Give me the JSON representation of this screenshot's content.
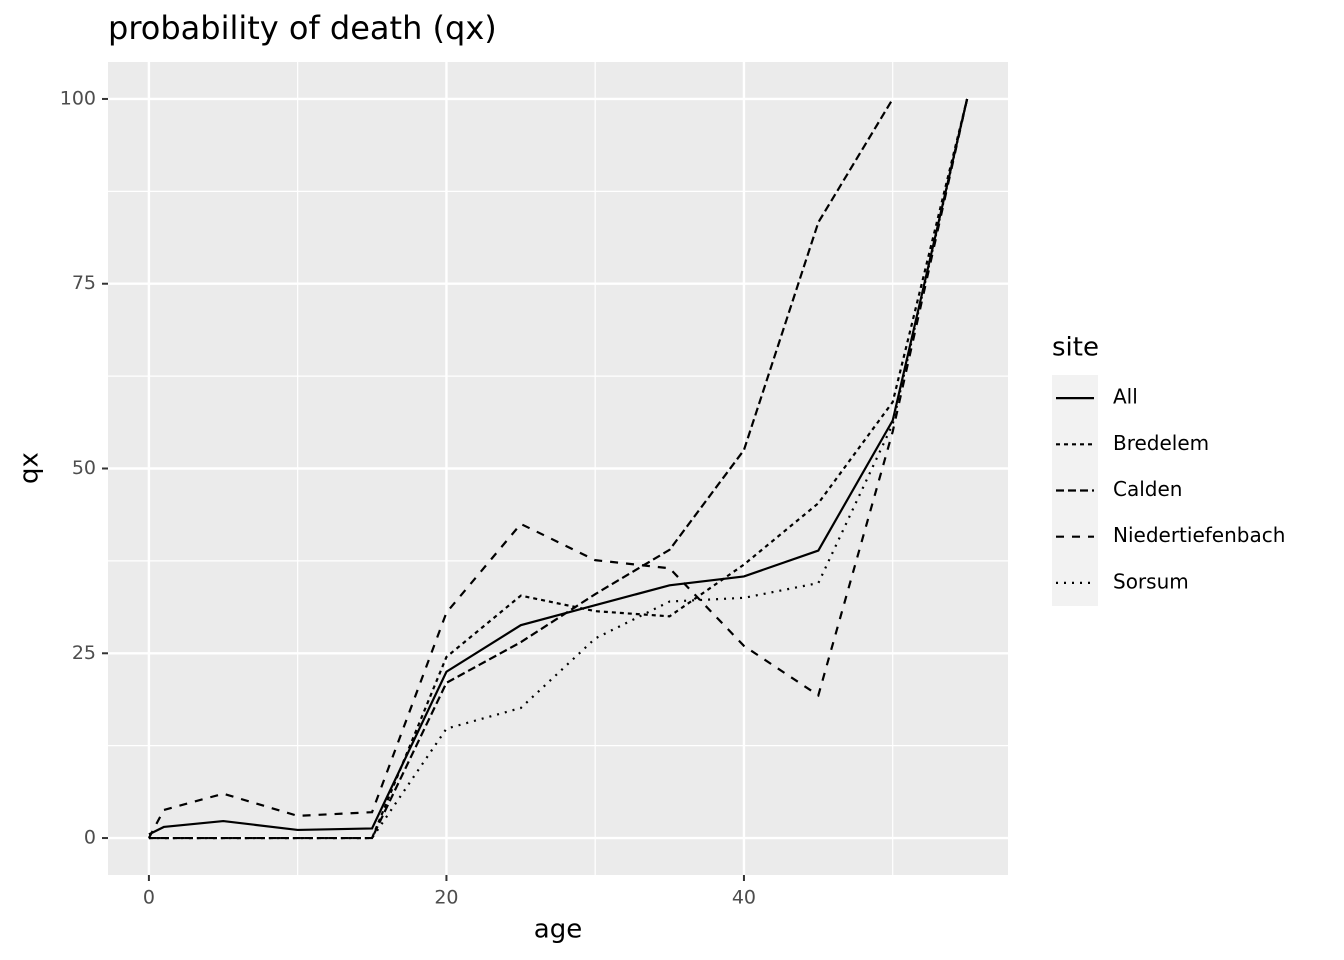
{
  "chart_data": {
    "type": "line",
    "title": "probability of death (qx)",
    "x_label": "age",
    "y_label": "qx",
    "legend_title": "site",
    "legend_position": "right",
    "grid": true,
    "panel_color": "#ebebeb",
    "x": [
      0,
      1,
      5,
      10,
      15,
      20,
      25,
      30,
      35,
      40,
      45,
      50,
      55
    ],
    "xlim": [
      -2.75,
      57.75
    ],
    "xticks": [
      0,
      20,
      40
    ],
    "minor_xgrid": [
      10,
      30,
      50
    ],
    "ylim": [
      -5,
      105
    ],
    "yticks": [
      0,
      25,
      50,
      75,
      100
    ],
    "minor_ygrid": [
      12.5,
      37.5,
      62.5,
      87.5
    ],
    "series": [
      {
        "name": "All",
        "color": "#000000",
        "dash": "solid",
        "values": [
          0.5,
          1.5,
          2.3,
          1.1,
          1.3,
          22.5,
          28.8,
          31.5,
          34.2,
          35.4,
          38.9,
          56.5,
          100
        ]
      },
      {
        "name": "Bredelem",
        "color": "#000000",
        "dash": "22",
        "values": [
          0,
          0,
          0,
          0,
          0,
          24.5,
          32.8,
          30.7,
          30,
          37,
          45.3,
          59,
          100
        ]
      },
      {
        "name": "Calden",
        "color": "#000000",
        "dash": "42",
        "values": [
          0,
          0,
          0,
          0,
          0,
          21,
          26.5,
          33,
          39,
          52.5,
          83.3,
          100,
          null
        ]
      },
      {
        "name": "Niedertiefenbach",
        "color": "#000000",
        "dash": "44",
        "values": [
          0,
          3.8,
          6,
          3,
          3.5,
          30.5,
          42.5,
          37.6,
          36.5,
          26,
          19.3,
          55,
          100
        ]
      },
      {
        "name": "Sorsum",
        "color": "#000000",
        "dash": "13",
        "values": [
          0,
          0,
          0,
          0,
          0,
          14.8,
          17.6,
          27,
          32,
          32.5,
          34.5,
          56,
          100
        ]
      }
    ]
  }
}
